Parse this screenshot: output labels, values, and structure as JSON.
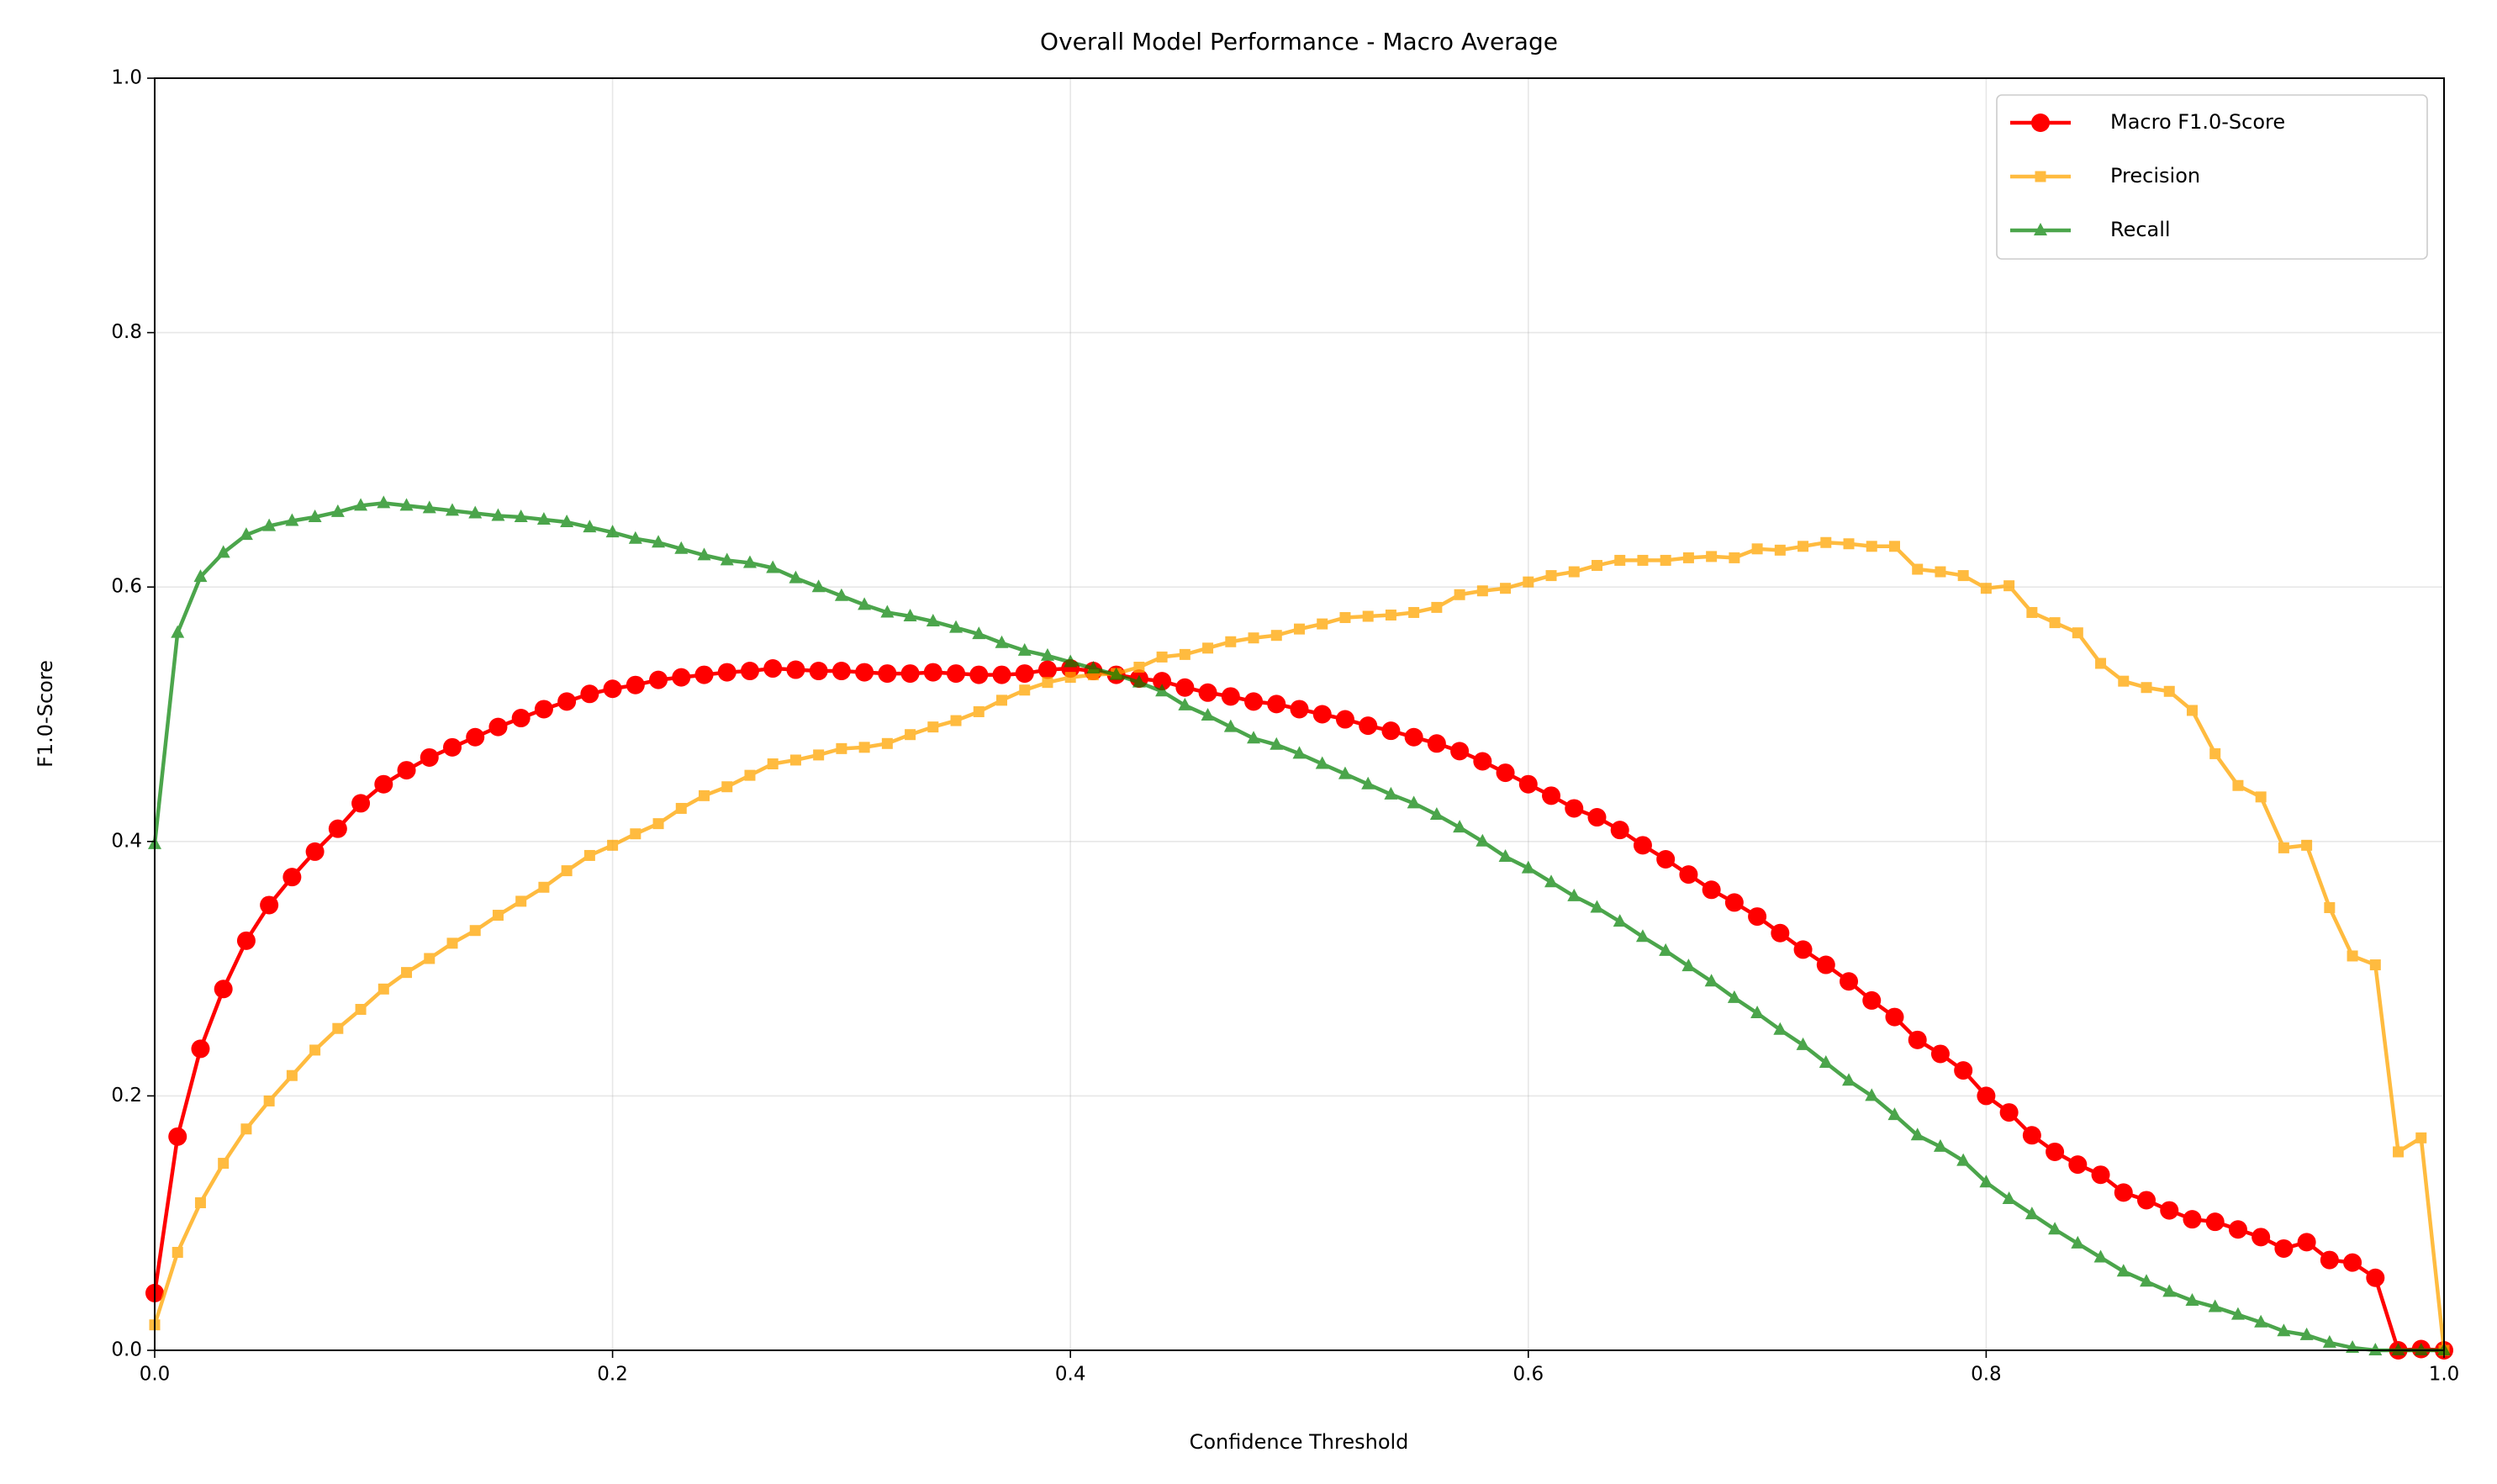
{
  "chart_data": {
    "type": "line",
    "title": "Overall Model Performance - Macro Average",
    "x_label": "Confidence Threshold",
    "y_label": "F1.0-Score",
    "x": [
      0,
      0.01,
      0.02,
      0.03,
      0.04,
      0.05,
      0.06,
      0.07,
      0.08,
      0.09,
      0.1,
      0.11,
      0.12,
      0.13,
      0.14,
      0.15,
      0.16,
      0.17,
      0.18,
      0.19,
      0.2,
      0.21,
      0.22,
      0.23,
      0.24,
      0.25,
      0.26,
      0.27,
      0.28,
      0.29,
      0.3,
      0.31,
      0.32,
      0.33,
      0.34,
      0.35,
      0.36,
      0.37,
      0.38,
      0.39,
      0.4,
      0.41,
      0.42,
      0.43,
      0.44,
      0.45,
      0.46,
      0.47,
      0.48,
      0.49,
      0.5,
      0.51,
      0.52,
      0.53,
      0.54,
      0.55,
      0.56,
      0.57,
      0.58,
      0.59,
      0.6,
      0.61,
      0.62,
      0.63,
      0.64,
      0.65,
      0.66,
      0.67,
      0.68,
      0.69,
      0.7,
      0.71,
      0.72,
      0.73,
      0.74,
      0.75,
      0.76,
      0.77,
      0.78,
      0.79,
      0.8,
      0.81,
      0.82,
      0.83,
      0.84,
      0.85,
      0.86,
      0.87,
      0.88,
      0.89,
      0.9,
      0.91,
      0.92,
      0.93,
      0.94,
      0.95,
      0.96,
      0.97,
      0.98,
      0.99,
      1
    ],
    "series": [
      {
        "name": "Macro F1.0-Score",
        "color": "#ff0000",
        "opacity": 1,
        "marker": "o",
        "values": [
          0.045,
          0.168,
          0.237,
          0.284,
          0.322,
          0.35,
          0.372,
          0.392,
          0.41,
          0.43,
          0.445,
          0.456,
          0.466,
          0.474,
          0.482,
          0.49,
          0.497,
          0.504,
          0.51,
          0.516,
          0.52,
          0.523,
          0.527,
          0.529,
          0.531,
          0.533,
          0.534,
          0.536,
          0.535,
          0.534,
          0.534,
          0.533,
          0.532,
          0.532,
          0.533,
          0.532,
          0.531,
          0.531,
          0.532,
          0.535,
          0.536,
          0.534,
          0.531,
          0.528,
          0.526,
          0.521,
          0.517,
          0.514,
          0.51,
          0.508,
          0.504,
          0.5,
          0.496,
          0.491,
          0.487,
          0.482,
          0.477,
          0.471,
          0.463,
          0.454,
          0.445,
          0.436,
          0.426,
          0.419,
          0.409,
          0.397,
          0.386,
          0.374,
          0.362,
          0.352,
          0.341,
          0.328,
          0.315,
          0.303,
          0.29,
          0.275,
          0.262,
          0.244,
          0.233,
          0.22,
          0.2,
          0.187,
          0.169,
          0.156,
          0.146,
          0.138,
          0.124,
          0.118,
          0.11,
          0.103,
          0.101,
          0.095,
          0.089,
          0.08,
          0.085,
          0.071,
          0.069,
          0.057,
          0,
          0.001,
          0
        ]
      },
      {
        "name": "Precision",
        "color": "#ffa500",
        "opacity": 0.75,
        "marker": "s",
        "values": [
          0.02,
          0.077,
          0.116,
          0.147,
          0.174,
          0.196,
          0.216,
          0.236,
          0.253,
          0.268,
          0.284,
          0.297,
          0.308,
          0.32,
          0.33,
          0.342,
          0.353,
          0.364,
          0.377,
          0.389,
          0.397,
          0.406,
          0.414,
          0.426,
          0.436,
          0.443,
          0.452,
          0.461,
          0.464,
          0.468,
          0.473,
          0.474,
          0.477,
          0.484,
          0.49,
          0.495,
          0.502,
          0.511,
          0.519,
          0.525,
          0.529,
          0.531,
          0.532,
          0.537,
          0.545,
          0.547,
          0.552,
          0.557,
          0.56,
          0.562,
          0.567,
          0.571,
          0.576,
          0.577,
          0.578,
          0.58,
          0.584,
          0.594,
          0.597,
          0.599,
          0.604,
          0.609,
          0.612,
          0.617,
          0.621,
          0.621,
          0.621,
          0.623,
          0.624,
          0.623,
          0.63,
          0.629,
          0.632,
          0.635,
          0.634,
          0.632,
          0.632,
          0.614,
          0.612,
          0.609,
          0.599,
          0.601,
          0.58,
          0.572,
          0.564,
          0.54,
          0.526,
          0.521,
          0.518,
          0.503,
          0.469,
          0.444,
          0.435,
          0.395,
          0.397,
          0.348,
          0.31,
          0.303,
          0.156,
          0.167,
          0
        ]
      },
      {
        "name": "Recall",
        "color": "#008000",
        "opacity": 0.7,
        "marker": "^",
        "values": [
          0.398,
          0.564,
          0.608,
          0.627,
          0.641,
          0.648,
          0.652,
          0.655,
          0.659,
          0.664,
          0.666,
          0.664,
          0.662,
          0.66,
          0.658,
          0.656,
          0.655,
          0.653,
          0.651,
          0.647,
          0.643,
          0.638,
          0.635,
          0.63,
          0.625,
          0.621,
          0.619,
          0.615,
          0.607,
          0.6,
          0.593,
          0.586,
          0.58,
          0.577,
          0.573,
          0.568,
          0.563,
          0.556,
          0.55,
          0.546,
          0.541,
          0.536,
          0.531,
          0.525,
          0.518,
          0.507,
          0.499,
          0.49,
          0.481,
          0.476,
          0.469,
          0.461,
          0.453,
          0.445,
          0.437,
          0.43,
          0.421,
          0.411,
          0.4,
          0.388,
          0.379,
          0.368,
          0.357,
          0.348,
          0.337,
          0.325,
          0.314,
          0.302,
          0.29,
          0.277,
          0.265,
          0.252,
          0.24,
          0.226,
          0.212,
          0.2,
          0.185,
          0.169,
          0.16,
          0.149,
          0.132,
          0.119,
          0.107,
          0.095,
          0.084,
          0.073,
          0.062,
          0.054,
          0.046,
          0.039,
          0.034,
          0.028,
          0.022,
          0.015,
          0.012,
          0.006,
          0.002,
          0,
          0,
          0,
          0
        ]
      }
    ],
    "xlim": [
      0,
      1
    ],
    "ylim": [
      0,
      1
    ],
    "xticks": [
      {
        "value": 0,
        "label": "0.0"
      },
      0.2,
      0.4,
      0.6,
      0.8,
      {
        "value": 1,
        "label": "1.0"
      }
    ],
    "yticks": [
      {
        "value": 0,
        "label": "0.0"
      },
      0.2,
      0.4,
      0.6,
      0.8,
      {
        "value": 1,
        "label": "1.0"
      }
    ],
    "grid": true,
    "legend": "upper right"
  }
}
